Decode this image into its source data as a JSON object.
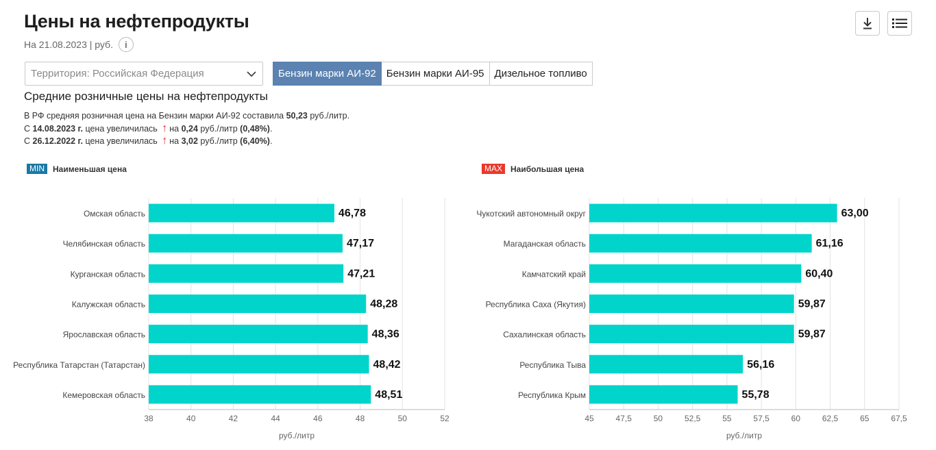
{
  "header": {
    "title": "Цены на нефтепродукты",
    "date_text": "На 21.08.2023 | руб.",
    "info_glyph": "i"
  },
  "filter": {
    "territory_label": "Территория: Российская  Федерация"
  },
  "tabs": [
    {
      "label": "Бензин марки АИ-92",
      "active": true
    },
    {
      "label": "Бензин марки АИ-95",
      "active": false
    },
    {
      "label": "Дизельное топливо",
      "active": false
    }
  ],
  "section_title": "Средние розничные цены на нефтепродукты",
  "summary": {
    "line1_prefix": "В РФ средняя розничная цена на Бензин марки АИ-92 составила ",
    "line1_value": "50,23",
    "line1_suffix": " руб./литр.",
    "line2_prefix": "С ",
    "line2_date": "14.08.2023 г.",
    "line2_mid": " цена увеличилась ",
    "line2_on": "на ",
    "line2_value": "0,24",
    "line2_unit": " руб./литр ",
    "line2_pct": "(0,48%)",
    "line2_end": ".",
    "line3_prefix": "С ",
    "line3_date": "26.12.2022 г.",
    "line3_mid": " цена увеличилась ",
    "line3_on": "на ",
    "line3_value": "3,02",
    "line3_unit": " руб./литр ",
    "line3_pct": "(6,40%)",
    "line3_end": "."
  },
  "legend": {
    "min_badge": "MIN",
    "min_label": "Наименьшая цена",
    "max_badge": "MAX",
    "max_label": "Наибольшая цена"
  },
  "colors": {
    "bar": "#00d4cb",
    "grid": "#e3e3e3",
    "axis": "#bbbbbb"
  },
  "chart_data": [
    {
      "type": "bar",
      "orientation": "horizontal",
      "title": "Наименьшая цена",
      "xlabel": "руб./литр",
      "xlim": [
        38,
        52
      ],
      "xticks": [
        38,
        40,
        42,
        44,
        46,
        48,
        50,
        52
      ],
      "xtick_labels": [
        "38",
        "40",
        "42",
        "44",
        "46",
        "48",
        "50",
        "52"
      ],
      "categories": [
        "Омская область",
        "Челябинская область",
        "Курганская область",
        "Калужская область",
        "Ярославская область",
        "Республика Татарстан (Татарстан)",
        "Кемеровская область"
      ],
      "values": [
        46.78,
        47.17,
        47.21,
        48.28,
        48.36,
        48.42,
        48.51
      ],
      "value_labels": [
        "46,78",
        "47,17",
        "47,21",
        "48,28",
        "48,36",
        "48,42",
        "48,51"
      ]
    },
    {
      "type": "bar",
      "orientation": "horizontal",
      "title": "Наибольшая цена",
      "xlabel": "руб./литр",
      "xlim": [
        45,
        67.5
      ],
      "xticks": [
        45,
        47.5,
        50,
        52.5,
        55,
        57.5,
        60,
        62.5,
        65,
        67.5
      ],
      "xtick_labels": [
        "45",
        "47,5",
        "50",
        "52,5",
        "55",
        "57,5",
        "60",
        "62,5",
        "65",
        "67,5"
      ],
      "categories": [
        "Чукотский автономный округ",
        "Магаданская область",
        "Камчатский край",
        "Республика Саха (Якутия)",
        "Сахалинская область",
        "Республика Тыва",
        "Республика Крым"
      ],
      "values": [
        63.0,
        61.16,
        60.4,
        59.87,
        59.87,
        56.16,
        55.78
      ],
      "value_labels": [
        "63,00",
        "61,16",
        "60,40",
        "59,87",
        "59,87",
        "56,16",
        "55,78"
      ]
    }
  ]
}
